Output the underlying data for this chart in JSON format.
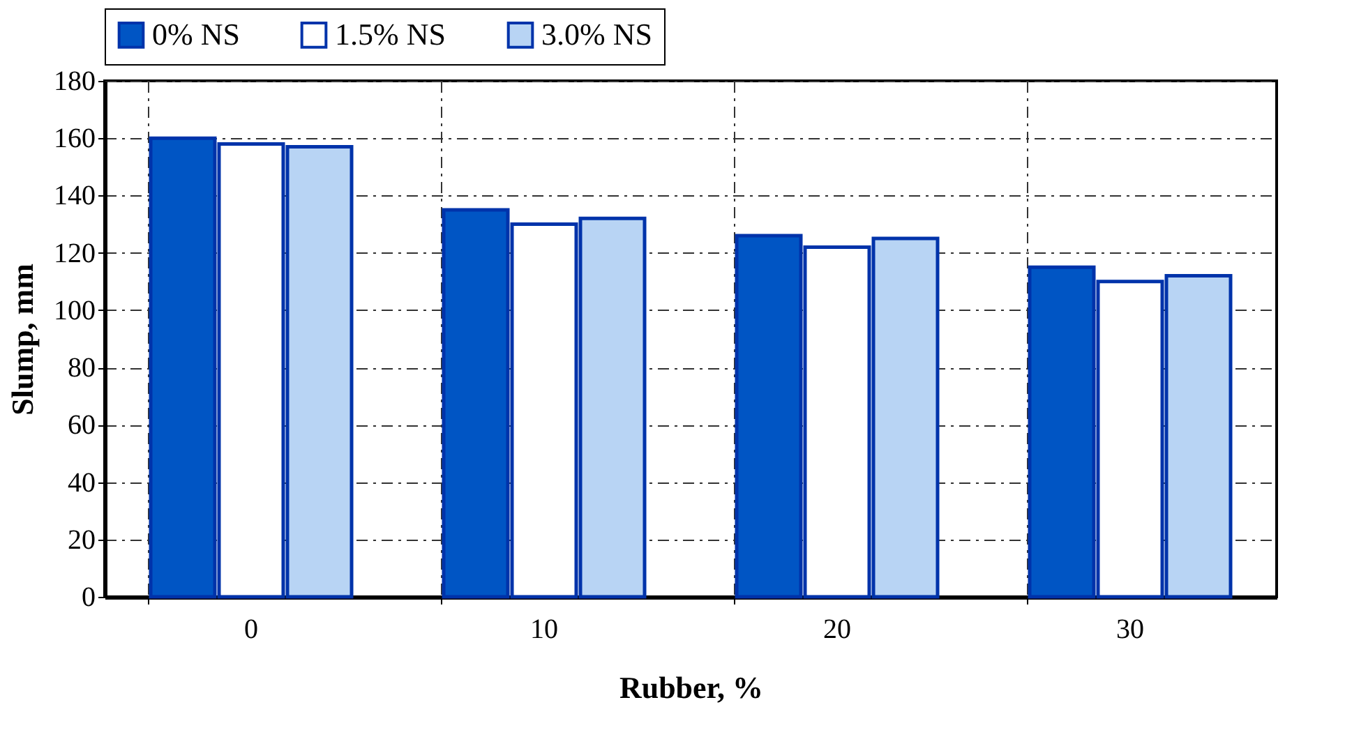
{
  "chart_data": {
    "type": "bar",
    "xlabel": "Rubber, %",
    "ylabel": "Slump, mm",
    "categories": [
      "0",
      "10",
      "20",
      "30"
    ],
    "series": [
      {
        "name": "0% NS",
        "color": "#0055c4",
        "values": [
          160,
          135,
          126,
          115
        ]
      },
      {
        "name": "1.5% NS",
        "color": "#ffffff",
        "values": [
          158,
          130,
          122,
          110
        ]
      },
      {
        "name": "3.0% NS",
        "color": "#b8d4f4",
        "values": [
          157,
          132,
          125,
          112
        ]
      }
    ],
    "ylim": [
      0,
      180
    ],
    "yticks": [
      0,
      20,
      40,
      60,
      80,
      100,
      120,
      140,
      160,
      180
    ],
    "grid": true,
    "legend": "top"
  }
}
